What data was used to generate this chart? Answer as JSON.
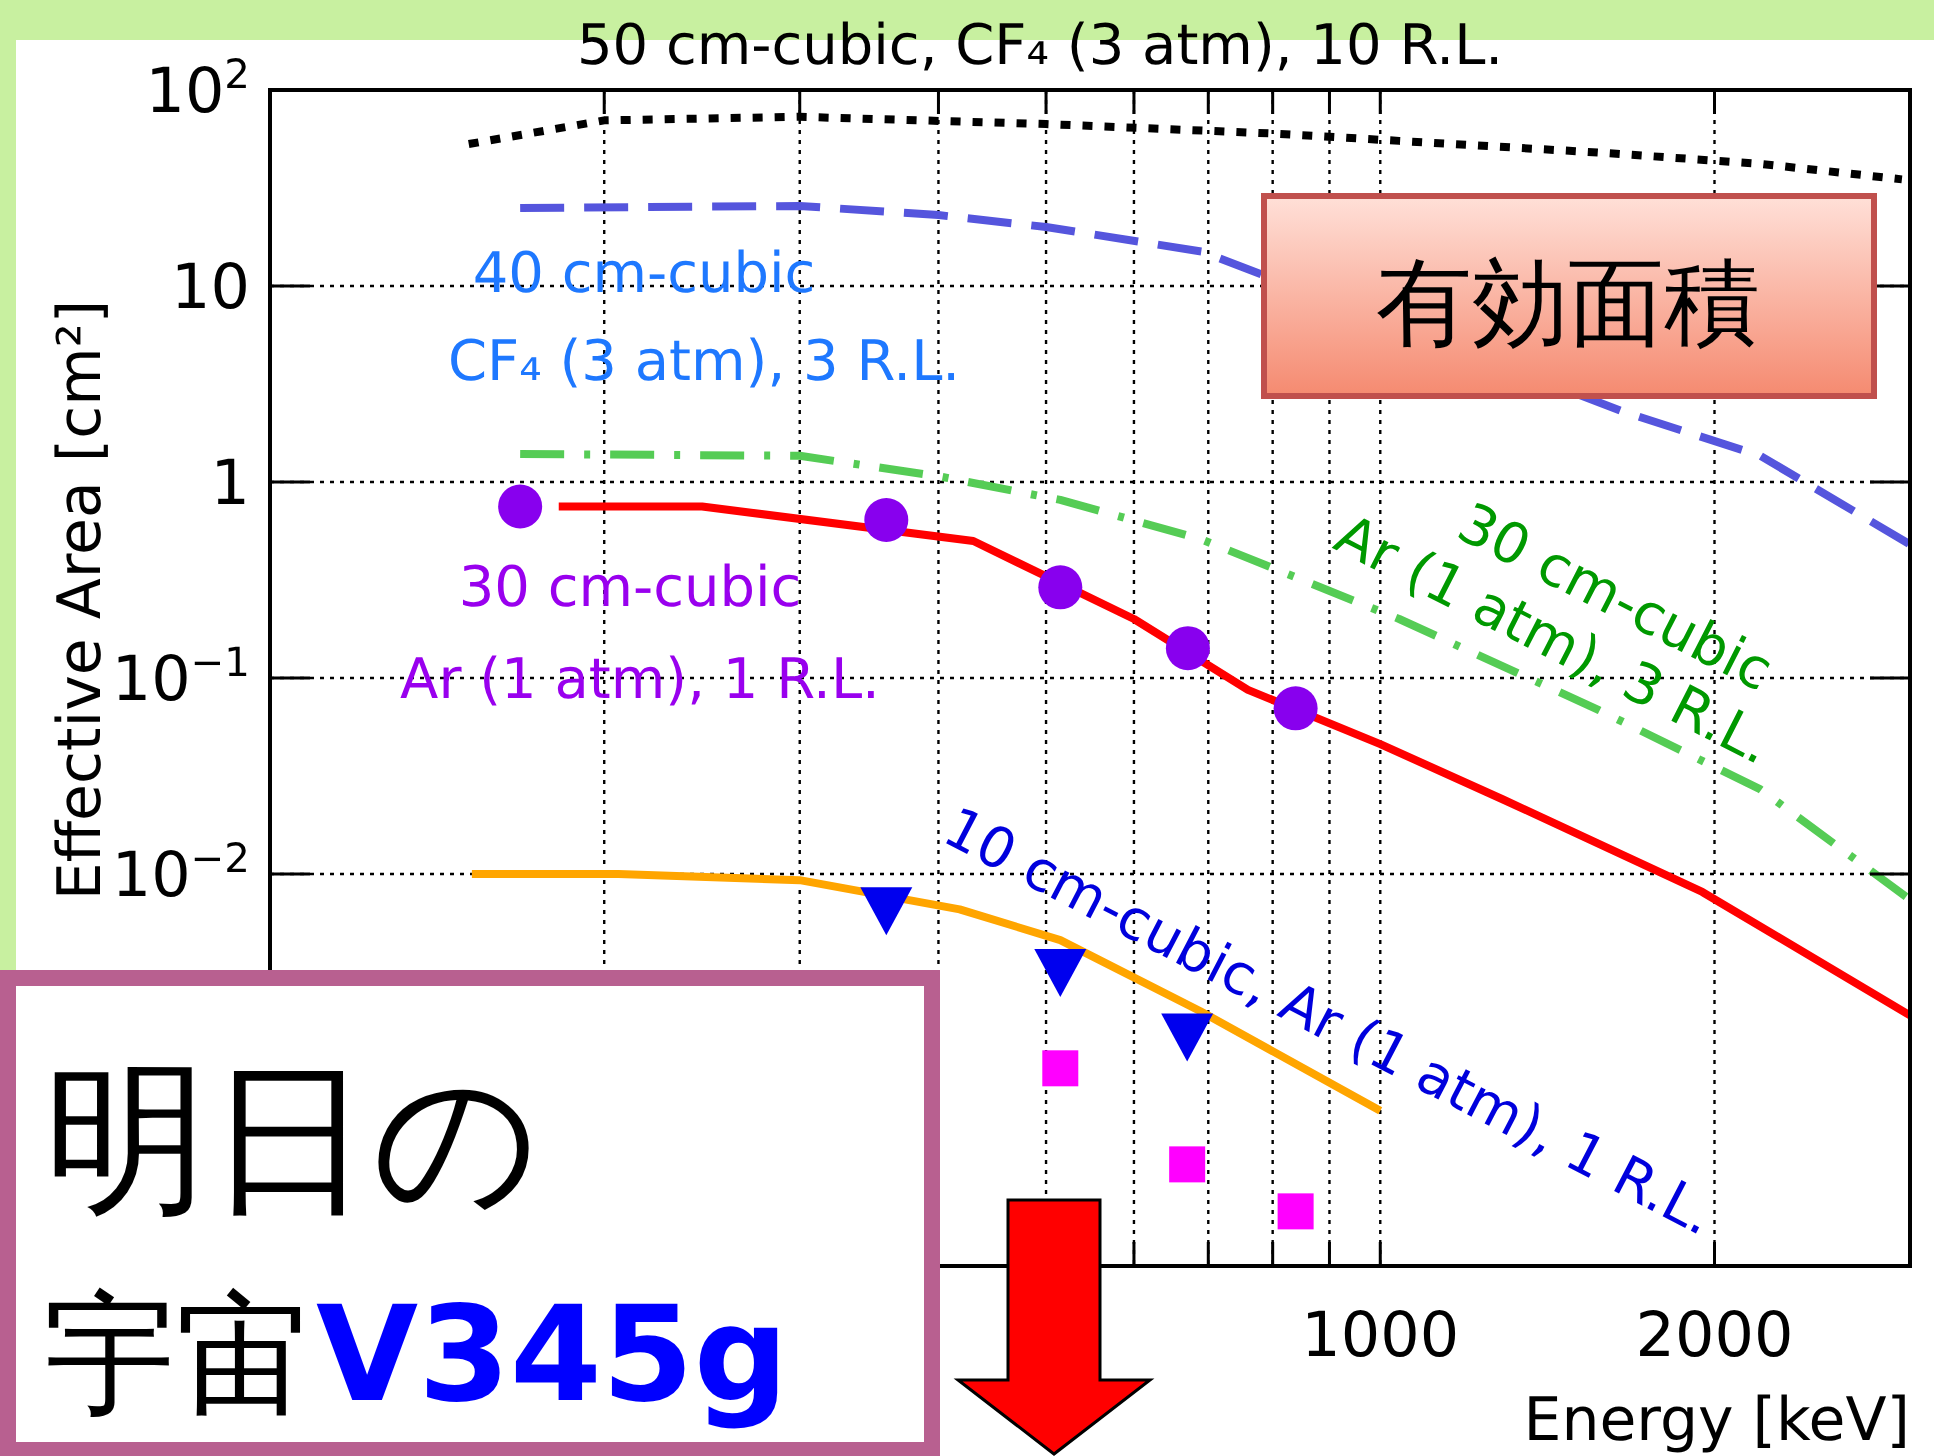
{
  "chart_data": {
    "type": "line",
    "xlabel": "Energy [keV]",
    "ylabel": "Effective Area [cm²]",
    "log": "xy",
    "grid": true,
    "xlim": [
      100,
      3000
    ],
    "ylim": [
      0.0001,
      100
    ],
    "xticks": [
      {
        "value": 100,
        "label": null
      },
      {
        "value": 200,
        "label": null
      },
      {
        "value": 300,
        "label": null
      },
      {
        "value": 400,
        "label": null
      },
      {
        "value": 500,
        "label": null
      },
      {
        "value": 600,
        "label": null
      },
      {
        "value": 700,
        "label": null
      },
      {
        "value": 800,
        "label": null
      },
      {
        "value": 900,
        "label": null
      },
      1000,
      2000
    ],
    "yticks": [
      {
        "value": 0.01,
        "label": "10$^{−2}$"
      },
      {
        "value": 0.1,
        "label": "10$^{−1}$"
      },
      1,
      10,
      {
        "value": 100,
        "label": "10$^{2}$"
      }
    ],
    "series": [
      {
        "name": "50 cm-cubic, CF₄ (3 atm), 10 R.L.",
        "line_style": "dotted",
        "color": "#000000",
        "x": [
          151,
          200,
          300,
          500,
          800,
          1040,
          1570,
          2200,
          2950
        ],
        "values": [
          53,
          70,
          73,
          67,
          60,
          55,
          48,
          42,
          35
        ]
      },
      {
        "name": "40 cm-cubic\nCF₄ (3 atm), 3 R.L.",
        "line_style": "dashed",
        "color": "#5555dd",
        "x": [
          168,
          300,
          400,
          500,
          690,
          1650,
          2200,
          3000
        ],
        "values": [
          25,
          25.6,
          23,
          20,
          15,
          2.3,
          1.36,
          0.48
        ]
      },
      {
        "name": "30 cm-cubic\nAr (1 atm), 3 R.L.",
        "line_style": "dashdot",
        "color": "#55cc55",
        "x": [
          168,
          300,
          400,
          515,
          690,
          1040,
          1570,
          2200,
          3000
        ],
        "values": [
          1.39,
          1.36,
          1.07,
          0.81,
          0.51,
          0.2,
          0.069,
          0.027,
          0.0074
        ]
      },
      {
        "line_style": "solid",
        "color": "#ff0000",
        "x": [
          182,
          245,
          430,
          600,
          760,
          1000,
          1290,
          1950,
          3000
        ],
        "values": [
          0.75,
          0.75,
          0.5,
          0.2,
          0.087,
          0.046,
          0.024,
          0.0081,
          0.0019
        ]
      },
      {
        "name": "30 cm-cubic\nAr (1 atm), 1 R.L.",
        "type": "scatter",
        "marker": "circle",
        "color": "#8800ee",
        "x": [
          168,
          359,
          515,
          671,
          839
        ],
        "values": [
          0.75,
          0.64,
          0.29,
          0.142,
          0.07
        ]
      },
      {
        "line_style": "solid",
        "color": "#ffa500",
        "x": [
          152,
          206,
          300,
          418,
          515,
          688,
          1000
        ],
        "values": [
          0.01,
          0.01,
          0.0093,
          0.0066,
          0.0046,
          0.002,
          0.00062
        ]
      },
      {
        "name": "10 cm-cubic, Ar (1 atm), 1 R.L.",
        "type": "scatter",
        "marker": "triangle",
        "color": "#0000ee",
        "x": [
          359,
          515,
          670
        ],
        "values": [
          0.0066,
          0.0032,
          0.0015
        ]
      },
      {
        "type": "scatter",
        "marker": "square",
        "color": "#ff00ff",
        "x": [
          515,
          670,
          839
        ],
        "values": [
          0.00102,
          0.00033,
          0.00019
        ]
      }
    ],
    "annotations": [
      "有効面積",
      "明日の",
      "宇宙",
      "V345g"
    ]
  }
}
